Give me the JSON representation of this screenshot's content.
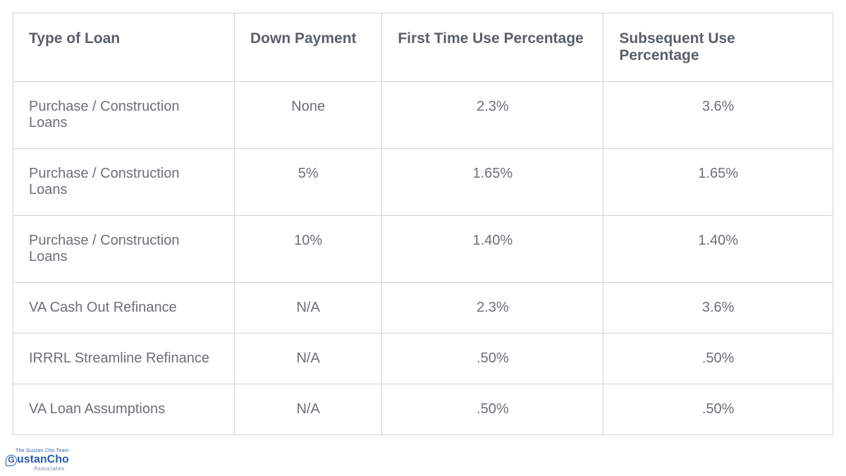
{
  "table": {
    "columns": [
      "Type of Loan",
      "Down Payment",
      "First Time Use Percentage",
      "Subsequent Use Percentage"
    ],
    "rows": [
      {
        "type": "Purchase / Construction Loans",
        "down": "None",
        "first": "2.3%",
        "sub": "3.6%"
      },
      {
        "type": "Purchase / Construction Loans",
        "down": "5%",
        "first": "1.65%",
        "sub": "1.65%"
      },
      {
        "type": "Purchase / Construction Loans",
        "down": "10%",
        "first": "1.40%",
        "sub": "1.40%"
      },
      {
        "type": "VA Cash Out Refinance",
        "down": "N/A",
        "first": "2.3%",
        "sub": "3.6%"
      },
      {
        "type": "IRRRL Streamline Refinance",
        "down": "N/A",
        "first": ".50%",
        "sub": ".50%"
      },
      {
        "type": "VA Loan Assumptions",
        "down": "N/A",
        "first": ".50%",
        "sub": ".50%"
      }
    ],
    "header_color": "#5a6067",
    "cell_color": "#6b7076",
    "border_color": "#d0d3d6",
    "background_color": "#ffffff",
    "header_fontsize": 21,
    "cell_fontsize": 20,
    "column_widths": [
      "27%",
      "18%",
      "27%",
      "28%"
    ],
    "cell_alignment": [
      "left",
      "center",
      "center",
      "center"
    ]
  },
  "logo": {
    "topline": "The Gustan Cho Team",
    "main": "GustanCho",
    "subline": "Associates",
    "color": "#2a5ca8"
  }
}
